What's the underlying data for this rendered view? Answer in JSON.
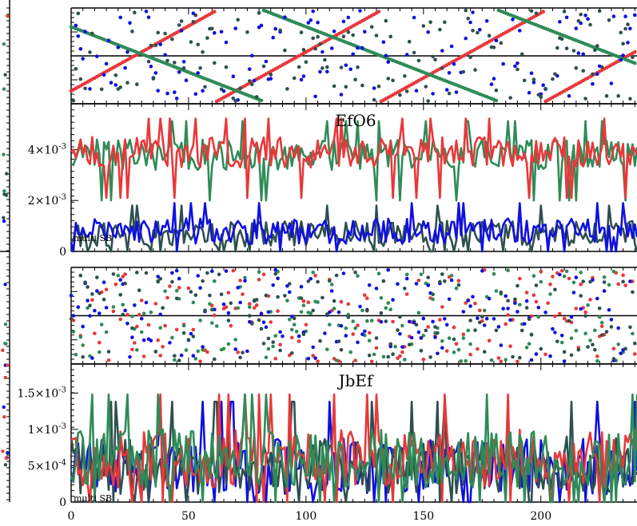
{
  "colors": {
    "red": "#e8383a",
    "green": "#2e8b57",
    "blue": "#1010e0",
    "slate": "#2f4f4f"
  },
  "chart_data": [
    {
      "type": "scatter",
      "panel": "top-phase",
      "title": "",
      "xlabel": "",
      "ylabel": "",
      "xlim": [
        0,
        245
      ],
      "ylim": [
        -1,
        1
      ],
      "grid": false,
      "description_series": [
        {
          "color": "red",
          "pattern": "sawtooth-rising",
          "period": 70
        },
        {
          "color": "green",
          "pattern": "sawtooth-falling",
          "period": 100
        },
        {
          "color": "blue",
          "pattern": "random"
        },
        {
          "color": "slate",
          "pattern": "random"
        }
      ]
    },
    {
      "type": "line",
      "panel": "top-amplitude",
      "title": "EfO6",
      "note": "multi SB",
      "xlim": [
        0,
        245
      ],
      "ylim": [
        0,
        0.0058
      ],
      "yticks": [
        {
          "value": 0,
          "label": "0",
          "sup": ""
        },
        {
          "value": 0.002,
          "label": "2×10",
          "sup": "-3"
        },
        {
          "value": 0.004,
          "label": "4×10",
          "sup": "-3"
        }
      ],
      "series_levels": [
        {
          "color": "red",
          "mean": 0.0039,
          "spread": 0.0006
        },
        {
          "color": "green",
          "mean": 0.0038,
          "spread": 0.0006
        },
        {
          "color": "blue",
          "mean": 0.0008,
          "spread": 0.0005
        },
        {
          "color": "slate",
          "mean": 0.0007,
          "spread": 0.0005
        }
      ]
    },
    {
      "type": "scatter",
      "panel": "bottom-phase",
      "title": "",
      "xlim": [
        0,
        245
      ],
      "ylim": [
        -1,
        1
      ],
      "grid": false,
      "description_series": [
        {
          "color": "red",
          "pattern": "random"
        },
        {
          "color": "green",
          "pattern": "random"
        },
        {
          "color": "blue",
          "pattern": "random"
        },
        {
          "color": "slate",
          "pattern": "random"
        }
      ]
    },
    {
      "type": "line",
      "panel": "bottom-amplitude",
      "title": "JbEf",
      "note": "multi SB",
      "xlim": [
        0,
        245
      ],
      "ylim": [
        0,
        0.0019
      ],
      "xticks": [
        0,
        50,
        100,
        150,
        200
      ],
      "yticks": [
        {
          "value": 0,
          "label": "0",
          "sup": ""
        },
        {
          "value": 0.0005,
          "label": "5×10",
          "sup": "-4"
        },
        {
          "value": 0.001,
          "label": "1×10",
          "sup": "-3"
        },
        {
          "value": 0.0015,
          "label": "1.5×10",
          "sup": "-3"
        }
      ],
      "series_levels": [
        {
          "color": "red",
          "mean": 0.0006,
          "spread": 0.0004
        },
        {
          "color": "green",
          "mean": 0.0006,
          "spread": 0.0004
        },
        {
          "color": "blue",
          "mean": 0.0005,
          "spread": 0.0004
        },
        {
          "color": "slate",
          "mean": 0.0005,
          "spread": 0.0004
        }
      ]
    }
  ]
}
